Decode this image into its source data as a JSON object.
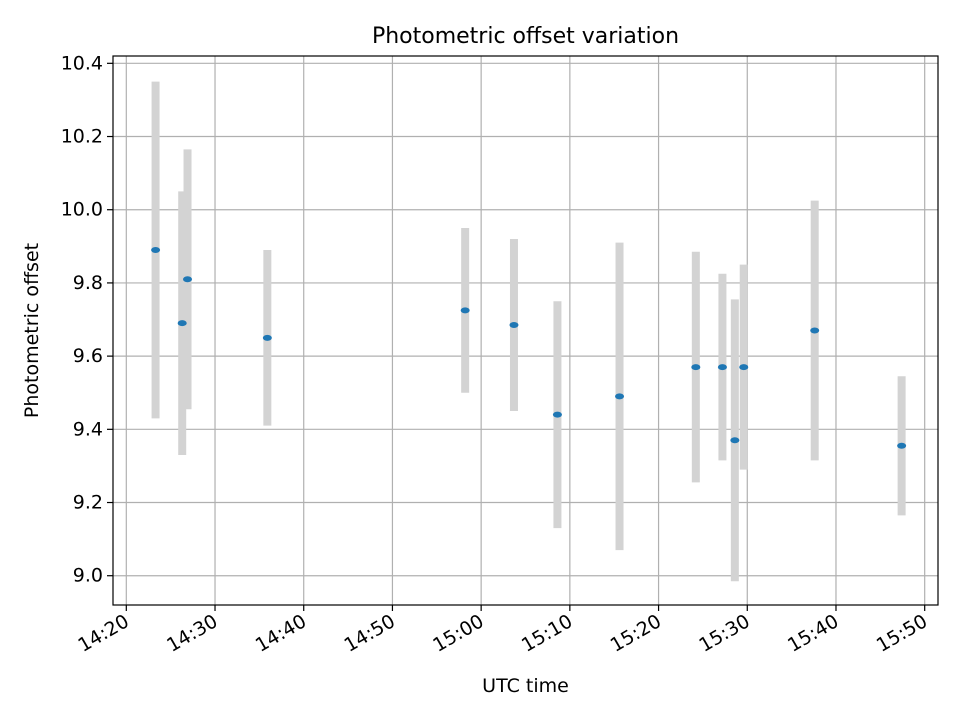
{
  "chart_data": {
    "type": "scatter",
    "title": "Photometric offset variation",
    "xlabel": "UTC time",
    "ylabel": "Photometric offset",
    "xlim": [
      "14:18.5",
      "15:51.5"
    ],
    "ylim": [
      8.92,
      10.42
    ],
    "x_ticks": [
      "14:20",
      "14:30",
      "14:40",
      "14:50",
      "15:00",
      "15:10",
      "15:20",
      "15:30",
      "15:40",
      "15:50"
    ],
    "y_ticks": [
      "9.0",
      "9.2",
      "9.4",
      "9.6",
      "9.8",
      "10.0",
      "10.2",
      "10.4"
    ],
    "grid": true,
    "colors": {
      "points": "#1f77b4",
      "errorbars": "#d3d3d3",
      "grid": "#b0b0b0"
    },
    "series": [
      {
        "points": [
          {
            "time": "14:23.3",
            "y": 9.89,
            "err": 0.46
          },
          {
            "time": "14:26.3",
            "y": 9.69,
            "err": 0.36
          },
          {
            "time": "14:26.9",
            "y": 9.81,
            "err": 0.355
          },
          {
            "time": "14:35.9",
            "y": 9.65,
            "err": 0.24
          },
          {
            "time": "14:58.2",
            "y": 9.725,
            "err": 0.225
          },
          {
            "time": "15:03.7",
            "y": 9.685,
            "err": 0.235
          },
          {
            "time": "15:08.6",
            "y": 9.44,
            "err": 0.31
          },
          {
            "time": "15:15.6",
            "y": 9.49,
            "err": 0.42
          },
          {
            "time": "15:24.2",
            "y": 9.57,
            "err": 0.315
          },
          {
            "time": "15:27.2",
            "y": 9.57,
            "err": 0.255
          },
          {
            "time": "15:28.6",
            "y": 9.37,
            "err": 0.385
          },
          {
            "time": "15:29.6",
            "y": 9.57,
            "err": 0.28
          },
          {
            "time": "15:37.6",
            "y": 9.67,
            "err": 0.355
          },
          {
            "time": "15:47.4",
            "y": 9.355,
            "err": 0.19
          }
        ]
      }
    ]
  }
}
